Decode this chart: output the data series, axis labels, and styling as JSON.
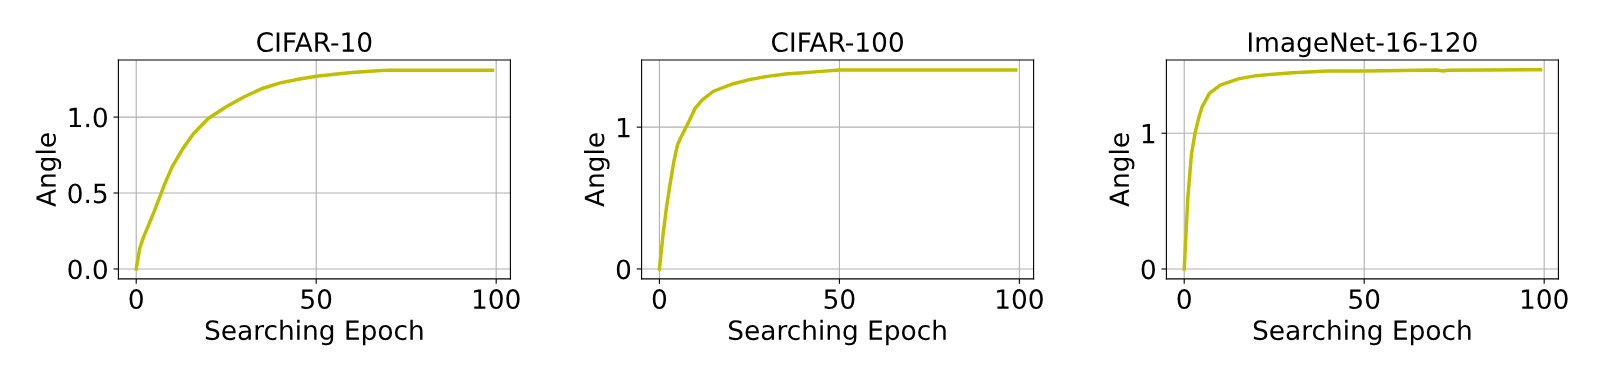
{
  "chart_data": [
    {
      "type": "line",
      "title": "CIFAR-10",
      "xlabel": "Searching Epoch",
      "ylabel": "Angle",
      "grid": true,
      "xlim": [
        -4.95,
        103.95
      ],
      "ylim": [
        -0.0655,
        1.3755
      ],
      "xticks": [
        0,
        50,
        100
      ],
      "yticks": [
        {
          "value": 0,
          "label": "0.0"
        },
        {
          "value": 0.5,
          "label": "0.5"
        },
        {
          "value": 1,
          "label": "1.0"
        }
      ],
      "series": [
        {
          "color": "#bfbf00",
          "x": [
            0,
            1,
            2,
            5,
            8,
            10,
            13,
            16,
            20,
            25,
            30,
            35,
            40,
            45,
            50,
            55,
            60,
            65,
            70,
            99
          ],
          "values": [
            0,
            0.138,
            0.208,
            0.379,
            0.565,
            0.674,
            0.794,
            0.893,
            0.991,
            1.068,
            1.134,
            1.188,
            1.225,
            1.249,
            1.269,
            1.282,
            1.293,
            1.302,
            1.309,
            1.309
          ]
        }
      ]
    },
    {
      "type": "line",
      "title": "CIFAR-100",
      "xlabel": "Searching Epoch",
      "ylabel": "Angle",
      "grid": true,
      "xlim": [
        -4.95,
        103.95
      ],
      "ylim": [
        -0.07,
        1.473
      ],
      "xticks": [
        0,
        50,
        100
      ],
      "yticks": [
        0,
        1
      ],
      "series": [
        {
          "color": "#bfbf00",
          "x": [
            0,
            1,
            2,
            3,
            4,
            5,
            6,
            8,
            10,
            12,
            15,
            20,
            25,
            30,
            35,
            40,
            45,
            50,
            99
          ],
          "values": [
            0,
            0.241,
            0.44,
            0.604,
            0.756,
            0.874,
            0.93,
            1.03,
            1.136,
            1.194,
            1.253,
            1.302,
            1.335,
            1.358,
            1.375,
            1.384,
            1.393,
            1.403,
            1.403
          ]
        }
      ]
    },
    {
      "type": "line",
      "title": "ImageNet-16-120",
      "xlabel": "Searching Epoch",
      "ylabel": "Angle",
      "grid": true,
      "xlim": [
        -4.95,
        103.95
      ],
      "ylim": [
        -0.073,
        1.539
      ],
      "xticks": [
        0,
        50,
        100
      ],
      "yticks": [
        0,
        1
      ],
      "series": [
        {
          "color": "#bfbf00",
          "x": [
            0,
            1,
            2,
            3,
            4,
            5,
            7,
            10,
            15,
            20,
            30,
            40,
            50,
            70,
            72,
            73,
            99
          ],
          "values": [
            0,
            0.522,
            0.841,
            1.0,
            1.11,
            1.196,
            1.294,
            1.355,
            1.4,
            1.424,
            1.446,
            1.458,
            1.458,
            1.466,
            1.458,
            1.463,
            1.468
          ]
        }
      ]
    }
  ]
}
